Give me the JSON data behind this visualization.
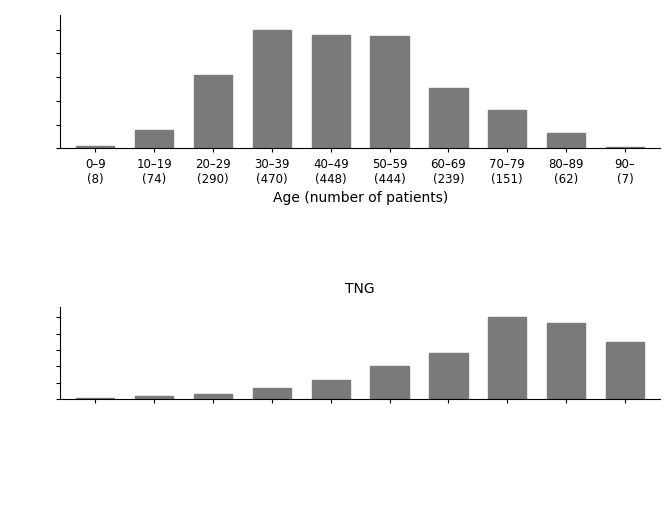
{
  "categories": [
    "0–9\n(8)",
    "10–19\n(74)",
    "20–29\n(290)",
    "30–39\n(470)",
    "40–49\n(448)",
    "50–59\n(444)",
    "60–69\n(239)",
    "70–79\n(151)",
    "80–89\n(62)",
    "90–\n(7)"
  ],
  "graves_values": [
    8,
    74,
    290,
    470,
    448,
    444,
    239,
    151,
    62,
    7
  ],
  "tng_values": [
    1,
    3,
    5,
    10,
    18,
    30,
    42,
    75,
    70,
    52
  ],
  "bar_color": "#7a7a7a",
  "xlabel": "Age (number of patients)",
  "label_tng": "TNG",
  "background_color": "#ffffff",
  "tick_fontsize": 8.5,
  "label_fontsize": 10
}
